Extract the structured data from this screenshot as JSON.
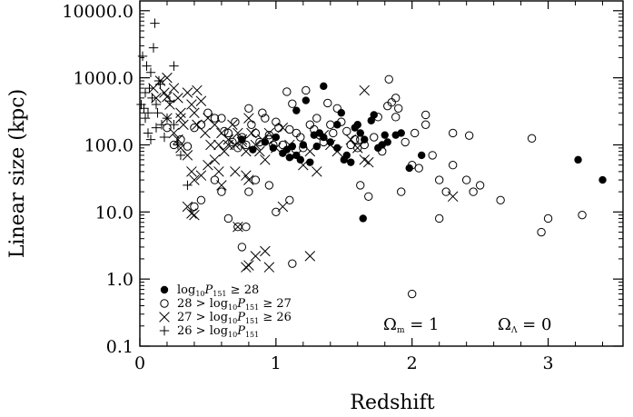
{
  "chart_data": {
    "type": "scatter",
    "xlabel": "Redshift",
    "ylabel": "Linear size (kpc)",
    "yscale": "log",
    "xlim": [
      0,
      3.55
    ],
    "ylim": [
      0.1,
      14000
    ],
    "x_ticks": [
      {
        "value": 0,
        "label": "0"
      },
      {
        "value": 1,
        "label": "1"
      },
      {
        "value": 2,
        "label": "2"
      },
      {
        "value": 3,
        "label": "3"
      }
    ],
    "y_ticks": [
      {
        "value": 0.1,
        "label": "0.1"
      },
      {
        "value": 1,
        "label": "1.0"
      },
      {
        "value": 10,
        "label": "10.0"
      },
      {
        "value": 100,
        "label": "100.0"
      },
      {
        "value": 1000,
        "label": "1000.0"
      },
      {
        "value": 10000,
        "label": "10000.0"
      }
    ],
    "grid": false,
    "legend_position": "bottom-left",
    "annotations": [
      {
        "symbol": "Ω",
        "sub": "m",
        "text": " = 1"
      },
      {
        "symbol": "Ω",
        "sub": "Λ",
        "text": " = 0"
      }
    ],
    "series": [
      {
        "legend": {
          "before": "",
          "mid": "log",
          "mid_sub": "10",
          "mid2": "P",
          "mid2_sub": "151",
          "after": " ≥ 28"
        },
        "marker": "filled-circle",
        "points": [
          [
            0.75,
            120
          ],
          [
            0.83,
            85
          ],
          [
            0.92,
            110
          ],
          [
            0.98,
            90
          ],
          [
            1.0,
            130
          ],
          [
            1.05,
            75
          ],
          [
            1.08,
            85
          ],
          [
            1.1,
            65
          ],
          [
            1.12,
            95
          ],
          [
            1.15,
            70
          ],
          [
            1.18,
            60
          ],
          [
            1.2,
            100
          ],
          [
            1.25,
            55
          ],
          [
            1.28,
            140
          ],
          [
            1.3,
            95
          ],
          [
            1.32,
            150
          ],
          [
            1.35,
            130
          ],
          [
            1.4,
            110
          ],
          [
            1.45,
            90
          ],
          [
            1.48,
            300
          ],
          [
            1.5,
            60
          ],
          [
            1.52,
            70
          ],
          [
            1.55,
            55
          ],
          [
            1.58,
            180
          ],
          [
            1.6,
            200
          ],
          [
            1.62,
            150
          ],
          [
            1.64,
            8
          ],
          [
            1.65,
            120
          ],
          [
            1.7,
            230
          ],
          [
            1.72,
            280
          ],
          [
            1.75,
            90
          ],
          [
            1.8,
            140
          ],
          [
            1.82,
            110
          ],
          [
            1.88,
            140
          ],
          [
            1.92,
            150
          ],
          [
            1.98,
            45
          ],
          [
            2.07,
            70
          ],
          [
            3.22,
            60
          ],
          [
            3.4,
            30
          ],
          [
            1.35,
            750
          ],
          [
            1.22,
            460
          ],
          [
            1.45,
            200
          ],
          [
            1.78,
            100
          ],
          [
            1.15,
            325
          ]
        ]
      },
      {
        "legend": {
          "before": "28 > ",
          "mid": "log",
          "mid_sub": "10",
          "mid2": "P",
          "mid2_sub": "151",
          "after": " ≥ 27"
        },
        "marker": "open-circle",
        "points": [
          [
            0.2,
            180
          ],
          [
            0.25,
            100
          ],
          [
            0.3,
            120
          ],
          [
            0.35,
            95
          ],
          [
            0.4,
            180
          ],
          [
            0.45,
            200
          ],
          [
            0.5,
            300
          ],
          [
            0.55,
            250
          ],
          [
            0.6,
            250
          ],
          [
            0.62,
            160
          ],
          [
            0.65,
            150
          ],
          [
            0.68,
            110
          ],
          [
            0.7,
            220
          ],
          [
            0.72,
            90
          ],
          [
            0.75,
            130
          ],
          [
            0.78,
            100
          ],
          [
            0.8,
            350
          ],
          [
            0.82,
            200
          ],
          [
            0.85,
            150
          ],
          [
            0.88,
            110
          ],
          [
            0.9,
            300
          ],
          [
            0.92,
            250
          ],
          [
            0.95,
            140
          ],
          [
            0.98,
            100
          ],
          [
            1.0,
            220
          ],
          [
            1.02,
            180
          ],
          [
            1.05,
            100
          ],
          [
            1.08,
            620
          ],
          [
            1.1,
            170
          ],
          [
            1.12,
            410
          ],
          [
            1.15,
            150
          ],
          [
            1.18,
            130
          ],
          [
            1.2,
            90
          ],
          [
            1.22,
            650
          ],
          [
            1.25,
            200
          ],
          [
            1.28,
            170
          ],
          [
            1.3,
            250
          ],
          [
            1.32,
            140
          ],
          [
            1.35,
            110
          ],
          [
            1.38,
            420
          ],
          [
            1.4,
            200
          ],
          [
            1.42,
            150
          ],
          [
            1.45,
            350
          ],
          [
            1.48,
            220
          ],
          [
            1.52,
            160
          ],
          [
            1.55,
            100
          ],
          [
            1.58,
            120
          ],
          [
            1.6,
            90
          ],
          [
            1.62,
            25
          ],
          [
            1.65,
            100
          ],
          [
            1.68,
            17
          ],
          [
            1.72,
            130
          ],
          [
            1.75,
            260
          ],
          [
            1.78,
            80
          ],
          [
            1.82,
            380
          ],
          [
            1.85,
            430
          ],
          [
            1.88,
            260
          ],
          [
            1.9,
            350
          ],
          [
            1.92,
            20
          ],
          [
            1.95,
            110
          ],
          [
            2.0,
            50
          ],
          [
            2.05,
            45
          ],
          [
            2.1,
            280
          ],
          [
            2.15,
            70
          ],
          [
            2.2,
            8
          ],
          [
            2.25,
            20
          ],
          [
            2.3,
            50
          ],
          [
            2.4,
            30
          ],
          [
            2.45,
            20
          ],
          [
            2.5,
            25
          ],
          [
            2.2,
            30
          ],
          [
            0.55,
            30
          ],
          [
            0.6,
            20
          ],
          [
            0.65,
            8
          ],
          [
            0.72,
            6
          ],
          [
            0.75,
            3
          ],
          [
            0.78,
            6
          ],
          [
            1.0,
            10
          ],
          [
            1.1,
            15
          ],
          [
            1.12,
            1.7
          ],
          [
            2.0,
            0.6
          ],
          [
            2.65,
            15
          ],
          [
            2.88,
            125
          ],
          [
            2.95,
            5
          ],
          [
            3.0,
            8
          ],
          [
            3.25,
            9
          ],
          [
            0.8,
            20
          ],
          [
            0.85,
            30
          ],
          [
            0.95,
            25
          ],
          [
            0.4,
            12
          ],
          [
            0.45,
            15
          ],
          [
            0.95,
            120
          ],
          [
            1.62,
            120
          ],
          [
            2.42,
            138
          ],
          [
            1.83,
            950
          ],
          [
            1.88,
            500
          ],
          [
            2.02,
            150
          ],
          [
            2.1,
            200
          ],
          [
            2.3,
            150
          ]
        ]
      },
      {
        "legend": {
          "before": "27 > ",
          "mid": "log",
          "mid_sub": "10",
          "mid2": "P",
          "mid2_sub": "151",
          "after": " ≥ 26"
        },
        "marker": "cross",
        "points": [
          [
            0.1,
            700
          ],
          [
            0.12,
            500
          ],
          [
            0.15,
            900
          ],
          [
            0.18,
            600
          ],
          [
            0.2,
            1000
          ],
          [
            0.22,
            400
          ],
          [
            0.25,
            700
          ],
          [
            0.28,
            500
          ],
          [
            0.3,
            300
          ],
          [
            0.32,
            200
          ],
          [
            0.35,
            600
          ],
          [
            0.38,
            400
          ],
          [
            0.4,
            300
          ],
          [
            0.42,
            200
          ],
          [
            0.45,
            450
          ],
          [
            0.48,
            150
          ],
          [
            0.5,
            250
          ],
          [
            0.52,
            100
          ],
          [
            0.55,
            200
          ],
          [
            0.58,
            100
          ],
          [
            0.6,
            150
          ],
          [
            0.62,
            80
          ],
          [
            0.65,
            120
          ],
          [
            0.68,
            200
          ],
          [
            0.7,
            100
          ],
          [
            0.72,
            150
          ],
          [
            0.75,
            110
          ],
          [
            0.78,
            80
          ],
          [
            0.8,
            250
          ],
          [
            0.82,
            150
          ],
          [
            0.85,
            100
          ],
          [
            0.88,
            80
          ],
          [
            0.9,
            120
          ],
          [
            0.92,
            60
          ],
          [
            0.95,
            150
          ],
          [
            1.0,
            90
          ],
          [
            1.05,
            180
          ],
          [
            1.1,
            100
          ],
          [
            1.15,
            70
          ],
          [
            1.2,
            50
          ],
          [
            1.25,
            80
          ],
          [
            1.3,
            40
          ],
          [
            1.35,
            140
          ],
          [
            1.4,
            100
          ],
          [
            1.45,
            80
          ],
          [
            1.55,
            120
          ],
          [
            1.6,
            90
          ],
          [
            1.65,
            60
          ],
          [
            1.68,
            55
          ],
          [
            0.2,
            250
          ],
          [
            0.25,
            150
          ],
          [
            0.28,
            120
          ],
          [
            0.3,
            90
          ],
          [
            0.35,
            70
          ],
          [
            0.38,
            40
          ],
          [
            0.4,
            30
          ],
          [
            0.45,
            35
          ],
          [
            0.5,
            50
          ],
          [
            0.55,
            60
          ],
          [
            0.58,
            40
          ],
          [
            0.6,
            25
          ],
          [
            0.65,
            100
          ],
          [
            0.7,
            40
          ],
          [
            0.75,
            120
          ],
          [
            0.78,
            35
          ],
          [
            0.8,
            30
          ],
          [
            0.35,
            12
          ],
          [
            0.38,
            9.5
          ],
          [
            0.4,
            9
          ],
          [
            0.8,
            1.6
          ],
          [
            0.85,
            2.2
          ],
          [
            0.95,
            1.5
          ],
          [
            1.05,
            12
          ],
          [
            1.25,
            2.2
          ],
          [
            0.78,
            1.5
          ],
          [
            0.92,
            2.6
          ],
          [
            1.65,
            650
          ],
          [
            2.3,
            17
          ],
          [
            0.72,
            6
          ],
          [
            0.2,
            520
          ],
          [
            0.3,
            250
          ],
          [
            0.42,
            650
          ]
        ]
      },
      {
        "legend": {
          "before": "26 > ",
          "mid": "log",
          "mid_sub": "10",
          "mid2": "P",
          "mid2_sub": "151",
          "after": ""
        },
        "marker": "plus",
        "points": [
          [
            0.01,
            400
          ],
          [
            0.02,
            2100
          ],
          [
            0.03,
            350
          ],
          [
            0.04,
            600
          ],
          [
            0.05,
            1500
          ],
          [
            0.06,
            300
          ],
          [
            0.07,
            700
          ],
          [
            0.08,
            1200
          ],
          [
            0.09,
            500
          ],
          [
            0.1,
            2800
          ],
          [
            0.11,
            6500
          ],
          [
            0.12,
            400
          ],
          [
            0.13,
            300
          ],
          [
            0.14,
            900
          ],
          [
            0.15,
            800
          ],
          [
            0.16,
            200
          ],
          [
            0.18,
            130
          ],
          [
            0.2,
            250
          ],
          [
            0.22,
            450
          ],
          [
            0.25,
            200
          ],
          [
            0.28,
            100
          ],
          [
            0.3,
            70
          ],
          [
            0.35,
            25
          ],
          [
            0.04,
            250
          ],
          [
            0.06,
            150
          ],
          [
            0.08,
            120
          ],
          [
            0.12,
            180
          ],
          [
            0.25,
            1500
          ]
        ]
      }
    ]
  }
}
